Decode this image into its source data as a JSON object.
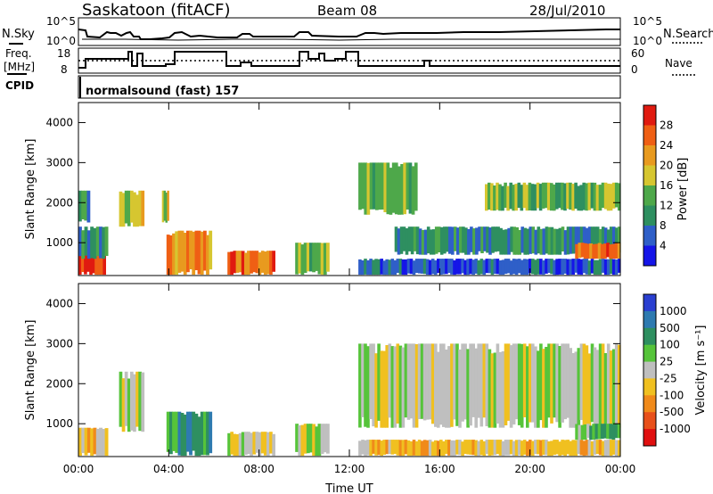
{
  "header": {
    "station": "Saskatoon (fitACF)",
    "beam": "Beam 08",
    "date": "28/Jul/2010"
  },
  "strip1": {
    "left_label": "N.Sky",
    "right_label": "N.Search",
    "tick_top": "10^5",
    "tick_bottom": "10^0"
  },
  "strip2": {
    "left_label_line1": "Freq.",
    "left_label_line2": "[MHz]",
    "right_label": "Nave",
    "left_tick_top": "18",
    "left_tick_bottom": "8",
    "right_tick_top": "60",
    "right_tick_bottom": "0"
  },
  "cpid": {
    "label": "CPID",
    "value": "normalsound (fast) 157"
  },
  "panels": {
    "ylabel": "Slant Range [km]",
    "xlabel": "Time UT",
    "yticks": [
      "1000",
      "2000",
      "3000",
      "4000"
    ],
    "xticks": [
      "00:00",
      "04:00",
      "08:00",
      "12:00",
      "16:00",
      "20:00",
      "00:00"
    ]
  },
  "power_scale": {
    "label": "Power [dB]",
    "ticks": [
      "4",
      "8",
      "12",
      "16",
      "20",
      "24",
      "28"
    ],
    "colors": [
      "#1515e8",
      "#2f5fc8",
      "#2e8f60",
      "#4ea84a",
      "#d6c630",
      "#e89a1f",
      "#ef5f14",
      "#e01a10"
    ]
  },
  "velocity_scale": {
    "label": "Velocity [m s⁻¹]",
    "ticks": [
      "1000",
      "500",
      "100",
      "25",
      "-25",
      "-100",
      "-500",
      "-1000"
    ],
    "colors": [
      "#2a3fd0",
      "#2e7ab0",
      "#2e8f60",
      "#56c43a",
      "#bfbfbf",
      "#f0c020",
      "#f08a1a",
      "#e8501a",
      "#e01010"
    ]
  },
  "chart_data": {
    "type": "heatmap",
    "time_range_hours": [
      0,
      24
    ],
    "range_km": [
      180,
      4500
    ],
    "power_regions": [
      {
        "t": [
          0.0,
          1.2
        ],
        "r": [
          200,
          900
        ],
        "level": 7
      },
      {
        "t": [
          0.0,
          1.3
        ],
        "r": [
          600,
          1400
        ],
        "level": 2
      },
      {
        "t": [
          0.0,
          0.5
        ],
        "r": [
          1500,
          2300
        ],
        "level": 2
      },
      {
        "t": [
          1.8,
          2.9
        ],
        "r": [
          1400,
          2300
        ],
        "level": 4
      },
      {
        "t": [
          3.7,
          4.0
        ],
        "r": [
          1500,
          2300
        ],
        "level": 4
      },
      {
        "t": [
          3.9,
          5.9
        ],
        "r": [
          200,
          1300
        ],
        "level": 5
      },
      {
        "t": [
          6.6,
          8.7
        ],
        "r": [
          200,
          800
        ],
        "level": 6
      },
      {
        "t": [
          9.6,
          11.1
        ],
        "r": [
          200,
          1000
        ],
        "level": 3
      },
      {
        "t": [
          12.4,
          24.0
        ],
        "r": [
          200,
          600
        ],
        "level": 1
      },
      {
        "t": [
          12.4,
          15.0
        ],
        "r": [
          1700,
          3000
        ],
        "level": 3
      },
      {
        "t": [
          14.0,
          24.0
        ],
        "r": [
          700,
          1400
        ],
        "level": 2
      },
      {
        "t": [
          18.0,
          24.0
        ],
        "r": [
          1800,
          2500
        ],
        "level": 3
      },
      {
        "t": [
          22.0,
          24.0
        ],
        "r": [
          600,
          1000
        ],
        "level": 6
      }
    ],
    "velocity_regions": [
      {
        "t": [
          0.0,
          1.3
        ],
        "r": [
          200,
          900
        ],
        "level": 5
      },
      {
        "t": [
          1.8,
          2.9
        ],
        "r": [
          800,
          2300
        ],
        "level": 4
      },
      {
        "t": [
          3.9,
          5.9
        ],
        "r": [
          200,
          1300
        ],
        "level": 2
      },
      {
        "t": [
          6.6,
          8.7
        ],
        "r": [
          200,
          800
        ],
        "level": 4
      },
      {
        "t": [
          9.6,
          11.1
        ],
        "r": [
          200,
          1000
        ],
        "level": 4
      },
      {
        "t": [
          12.4,
          24.0
        ],
        "r": [
          200,
          600
        ],
        "level": 5
      },
      {
        "t": [
          12.4,
          24.0
        ],
        "r": [
          900,
          3000
        ],
        "level": 4
      },
      {
        "t": [
          22.0,
          24.0
        ],
        "r": [
          600,
          1000
        ],
        "level": 3
      }
    ]
  }
}
